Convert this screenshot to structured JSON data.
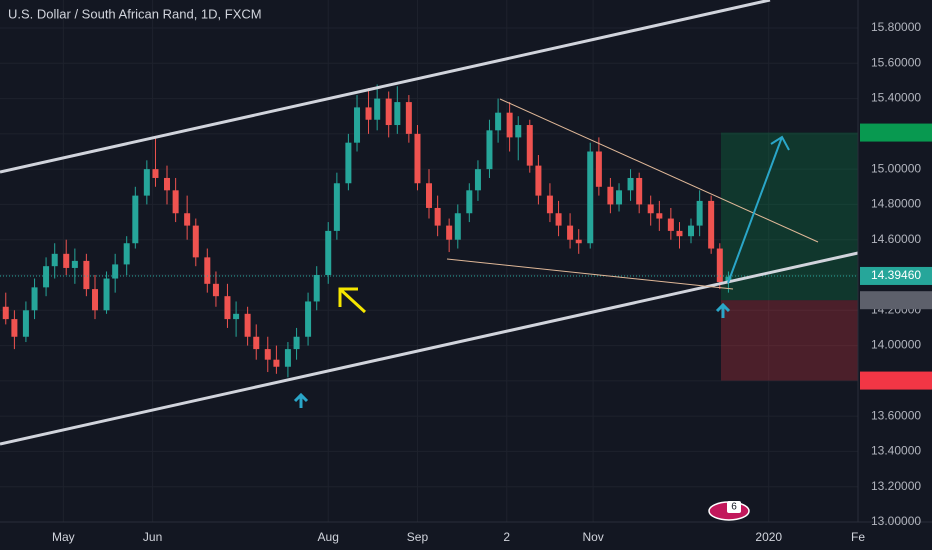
{
  "chart_data": {
    "type": "candlestick",
    "title": "U.S. Dollar / South African Rand, 1D, FXCM",
    "up_color": "#26a69a",
    "down_color": "#ef5350",
    "xlim": [
      99,
      397
    ],
    "xticks": [
      {
        "value": 121,
        "label": "May"
      },
      {
        "value": 152,
        "label": "Jun"
      },
      {
        "value": 213,
        "label": "Aug"
      },
      {
        "value": 244,
        "label": "Sep"
      },
      {
        "value": 275,
        "label": "2"
      },
      {
        "value": 305,
        "label": "Nov"
      },
      {
        "value": 366,
        "label": "2020"
      },
      {
        "value": 397,
        "label": "Fe"
      }
    ],
    "ylim": [
      13.0,
      15.8
    ],
    "yticks": [
      {
        "value": 13.0,
        "label": "13.00000"
      },
      {
        "value": 13.2,
        "label": "13.20000"
      },
      {
        "value": 13.4,
        "label": "13.40000"
      },
      {
        "value": 13.6,
        "label": "13.60000"
      },
      {
        "value": 13.8,
        "label": "13.80000"
      },
      {
        "value": 14.0,
        "label": "14.00000"
      },
      {
        "value": 14.2,
        "label": "14.20000"
      },
      {
        "value": 14.4,
        "label": "14.40000"
      },
      {
        "value": 14.6,
        "label": "14.60000"
      },
      {
        "value": 14.8,
        "label": "14.80000"
      },
      {
        "value": 15.0,
        "label": "15.00000"
      },
      {
        "value": 15.2,
        "label": "15.20000"
      },
      {
        "value": 15.4,
        "label": "15.40000"
      },
      {
        "value": 15.6,
        "label": "15.60000"
      },
      {
        "value": 15.8,
        "label": "15.80000"
      }
    ],
    "grid": true,
    "candles": {
      "x": [
        101,
        104,
        108,
        111,
        115,
        118,
        122,
        125,
        129,
        132,
        136,
        139,
        143,
        146,
        150,
        153,
        157,
        160,
        164,
        167,
        171,
        174,
        178,
        181,
        185,
        188,
        192,
        195,
        199,
        202,
        206,
        209,
        213,
        216,
        220,
        223,
        227,
        230,
        234,
        237,
        241,
        244,
        248,
        251,
        255,
        258,
        262,
        265,
        269,
        272,
        276,
        279,
        283,
        286,
        290,
        293,
        297,
        300,
        304,
        307,
        311,
        314,
        318,
        321,
        325,
        328,
        332,
        335,
        339,
        342,
        346,
        349,
        352
      ],
      "open": [
        14.22,
        14.15,
        14.05,
        14.2,
        14.33,
        14.45,
        14.52,
        14.44,
        14.48,
        14.32,
        14.2,
        14.38,
        14.46,
        14.58,
        14.85,
        15.0,
        14.95,
        14.88,
        14.75,
        14.68,
        14.5,
        14.35,
        14.28,
        14.15,
        14.18,
        14.05,
        13.98,
        13.92,
        13.88,
        13.98,
        14.05,
        14.25,
        14.4,
        14.65,
        14.92,
        15.15,
        15.35,
        15.28,
        15.4,
        15.25,
        15.38,
        15.2,
        14.92,
        14.78,
        14.68,
        14.6,
        14.75,
        14.88,
        15.0,
        15.22,
        15.32,
        15.18,
        15.25,
        15.02,
        14.85,
        14.75,
        14.68,
        14.6,
        14.58,
        15.1,
        14.9,
        14.8,
        14.88,
        14.95,
        14.8,
        14.75,
        14.72,
        14.65,
        14.62,
        14.68,
        14.82,
        14.55,
        14.36
      ],
      "high": [
        14.3,
        14.2,
        14.25,
        14.38,
        14.5,
        14.58,
        14.6,
        14.55,
        14.52,
        14.4,
        14.42,
        14.52,
        14.62,
        14.9,
        15.05,
        15.18,
        15.02,
        14.95,
        14.85,
        14.72,
        14.55,
        14.42,
        14.35,
        14.25,
        14.22,
        14.12,
        14.05,
        14.0,
        14.02,
        14.1,
        14.3,
        14.45,
        14.7,
        14.98,
        15.2,
        15.42,
        15.46,
        15.48,
        15.44,
        15.47,
        15.42,
        15.25,
        15.0,
        14.85,
        14.72,
        14.8,
        14.92,
        15.05,
        15.28,
        15.4,
        15.38,
        15.3,
        15.28,
        15.08,
        14.92,
        14.82,
        14.75,
        14.66,
        15.15,
        15.18,
        14.95,
        14.92,
        15.0,
        14.98,
        14.85,
        14.82,
        14.78,
        14.7,
        14.72,
        14.88,
        14.85,
        14.58,
        14.42
      ],
      "low": [
        14.12,
        13.98,
        14.02,
        14.15,
        14.28,
        14.38,
        14.4,
        14.35,
        14.28,
        14.15,
        14.18,
        14.3,
        14.4,
        14.55,
        14.8,
        14.9,
        14.8,
        14.7,
        14.6,
        14.45,
        14.3,
        14.22,
        14.1,
        14.05,
        14.0,
        13.92,
        13.85,
        13.84,
        13.82,
        13.92,
        14.0,
        14.2,
        14.35,
        14.6,
        14.88,
        15.1,
        15.2,
        15.22,
        15.18,
        15.2,
        15.15,
        14.88,
        14.72,
        14.62,
        14.53,
        14.55,
        14.7,
        14.82,
        14.95,
        15.15,
        15.1,
        15.05,
        14.98,
        14.8,
        14.7,
        14.62,
        14.55,
        14.52,
        14.55,
        14.85,
        14.75,
        14.76,
        14.82,
        14.75,
        14.68,
        14.65,
        14.6,
        14.55,
        14.58,
        14.62,
        14.52,
        14.32,
        14.3
      ],
      "close": [
        14.15,
        14.05,
        14.2,
        14.33,
        14.45,
        14.52,
        14.44,
        14.48,
        14.32,
        14.2,
        14.38,
        14.46,
        14.58,
        14.85,
        15.0,
        14.95,
        14.88,
        14.75,
        14.68,
        14.5,
        14.35,
        14.28,
        14.15,
        14.18,
        14.05,
        13.98,
        13.92,
        13.88,
        13.98,
        14.05,
        14.25,
        14.4,
        14.65,
        14.92,
        15.15,
        15.35,
        15.28,
        15.4,
        15.25,
        15.38,
        15.2,
        14.92,
        14.78,
        14.68,
        14.6,
        14.75,
        14.88,
        15.0,
        15.22,
        15.32,
        15.18,
        15.25,
        15.02,
        14.85,
        14.75,
        14.68,
        14.6,
        14.58,
        15.1,
        14.9,
        14.8,
        14.88,
        14.95,
        14.8,
        14.75,
        14.72,
        14.65,
        14.62,
        14.68,
        14.82,
        14.55,
        14.36,
        14.39
      ]
    },
    "price_labels": [
      {
        "value": 15.20733,
        "color": "#089950"
      },
      {
        "value": 14.3946,
        "label": "14.39460",
        "color": "#26a69a"
      },
      {
        "value": 14.25714,
        "color": "#5d606b"
      },
      {
        "value": 13.80163,
        "color": "#f23645"
      }
    ],
    "badge": 6
  }
}
